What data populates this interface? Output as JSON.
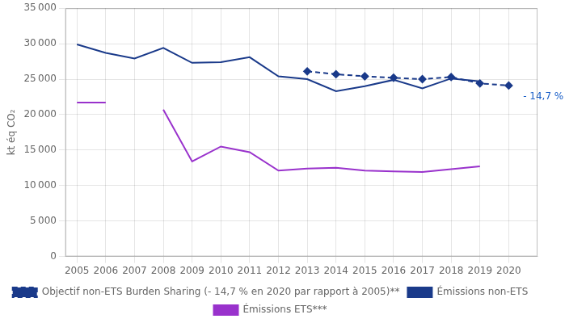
{
  "chart_data": {
    "type": "line",
    "y_label": "kt éq CO₂",
    "xlim": [
      2004.6,
      2021.0
    ],
    "xticks": [
      2005,
      2006,
      2007,
      2008,
      2009,
      2010,
      2011,
      2012,
      2013,
      2014,
      2015,
      2016,
      2017,
      2018,
      2019,
      2020
    ],
    "ylim": [
      0,
      35000
    ],
    "yticks": [
      0,
      {
        "value": 5000,
        "label": "5 000"
      },
      {
        "value": 10000,
        "label": "10 000"
      },
      {
        "value": 15000,
        "label": "15 000"
      },
      {
        "value": 20000,
        "label": "20 000"
      },
      {
        "value": 25000,
        "label": "25 000"
      },
      {
        "value": 30000,
        "label": "30 000"
      },
      {
        "value": 35000,
        "label": "35 000"
      }
    ],
    "grid": true,
    "legend": "bottom",
    "series": [
      {
        "name": "Objectif non-ETS Burden Sharing (- 14,7 % en 2020 par rapport à 2005)**",
        "color": "#1a3a8a",
        "line_style": "dashed",
        "marker": "diamond",
        "x": [
          2013,
          2014,
          2015,
          2016,
          2017,
          2018,
          2019,
          2020
        ],
        "values": [
          26100,
          25700,
          25400,
          25200,
          25000,
          25300,
          24400,
          24100
        ]
      },
      {
        "name": "Émissions non-ETS",
        "color": "#1a3a8a",
        "line_style": "solid",
        "marker": "none",
        "x": [
          2005,
          2006,
          2007,
          2008,
          2009,
          2010,
          2011,
          2012,
          2013,
          2014,
          2015,
          2016,
          2017,
          2018,
          2019
        ],
        "values": [
          29900,
          28700,
          27900,
          29400,
          27300,
          27400,
          28100,
          25400,
          25000,
          23300,
          24000,
          24900,
          23700,
          25100,
          24700
        ]
      },
      {
        "name": "Émissions ETS***",
        "color": "#9932cc",
        "line_style": "solid",
        "marker": "none",
        "x": [
          2005,
          2006,
          2007,
          2008,
          2009,
          2010,
          2011,
          2012,
          2013,
          2014,
          2015,
          2016,
          2017,
          2018,
          2019
        ],
        "values": [
          21700,
          21700,
          null,
          20700,
          13400,
          15500,
          14700,
          12100,
          12400,
          12500,
          12100,
          12000,
          11900,
          12300,
          12700
        ]
      }
    ],
    "annotations": [
      {
        "text": "- 14,7 %",
        "x": 2020.5,
        "y": 22500,
        "color": "#1a5fc8"
      }
    ]
  }
}
